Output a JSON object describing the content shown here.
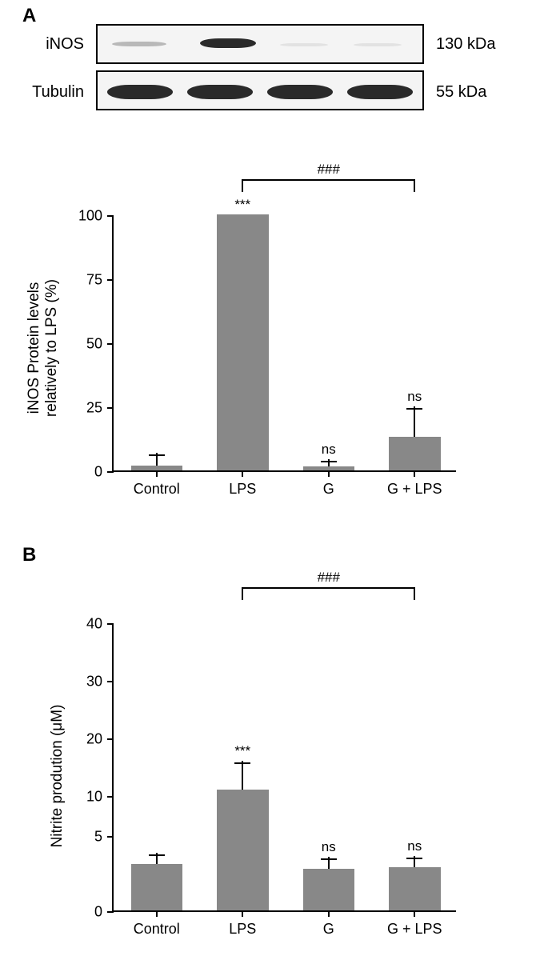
{
  "panelA": {
    "label": "A",
    "blot": {
      "rows": [
        {
          "label": "iNOS",
          "mw": "130 kDa"
        },
        {
          "label": "Tubulin",
          "mw": "55 kDa"
        }
      ]
    },
    "chart": {
      "type": "bar",
      "ylabel_line1": "iNOS Protein levels",
      "ylabel_line2": "relatively to LPS (%)",
      "ylim": [
        0,
        100
      ],
      "yticks": [
        0,
        25,
        50,
        75,
        100
      ],
      "categories": [
        "Control",
        "LPS",
        "G",
        "G + LPS"
      ],
      "values": [
        2,
        100,
        1.5,
        13
      ],
      "errors": [
        5,
        0,
        3,
        12
      ],
      "bar_color": "#888888",
      "annotations": [
        "",
        "***",
        "ns",
        "ns"
      ],
      "bracket": {
        "from": 1,
        "to": 3,
        "label": "###"
      }
    }
  },
  "panelB": {
    "label": "B",
    "chart": {
      "type": "bar",
      "ylabel": "Nitrite prodution (μM)",
      "ylim": [
        0,
        40
      ],
      "yticks": [
        0,
        5,
        10,
        20,
        30,
        40
      ],
      "ytick_positions_pct": [
        0,
        26,
        40,
        60,
        80,
        100
      ],
      "categories": [
        "Control",
        "LPS",
        "G",
        "G + LPS"
      ],
      "values": [
        3.0,
        10.5,
        2.7,
        2.8
      ],
      "value_positions_pct": [
        16,
        42,
        14.5,
        15
      ],
      "errors_pct": [
        4,
        10,
        4,
        4
      ],
      "bar_color": "#888888",
      "annotations": [
        "",
        "***",
        "ns",
        "ns"
      ],
      "bracket": {
        "from": 1,
        "to": 3,
        "label": "###"
      }
    }
  }
}
